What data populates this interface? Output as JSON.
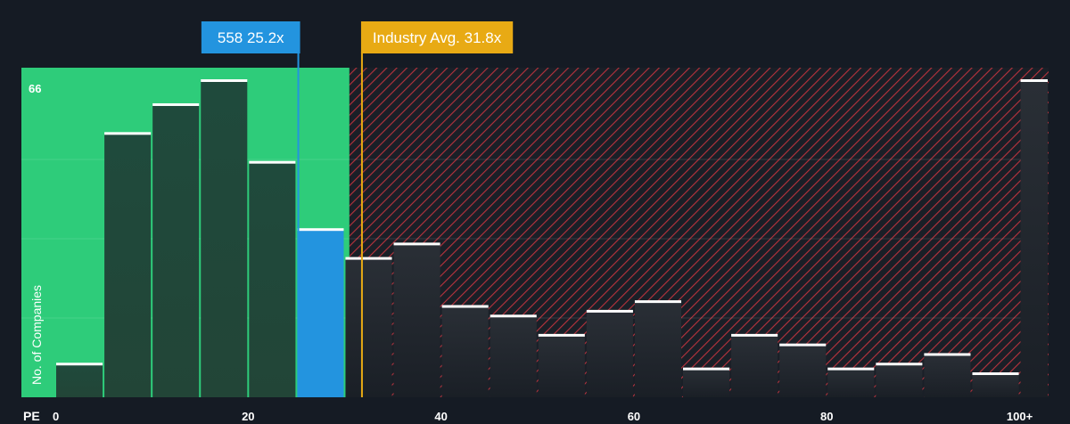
{
  "chart_data": {
    "type": "bar",
    "xlabel": "PE",
    "ylabel": "No. of Companies",
    "y_max_label": "66",
    "ylim": [
      0,
      66
    ],
    "xlim": [
      0,
      103
    ],
    "x_ticks": [
      {
        "value": 0,
        "label": "0"
      },
      {
        "value": 20,
        "label": "20"
      },
      {
        "value": 40,
        "label": "40"
      },
      {
        "value": 60,
        "label": "60"
      },
      {
        "value": 80,
        "label": "80"
      },
      {
        "value": 100,
        "label": "100+"
      }
    ],
    "bins": [
      {
        "x0": 0,
        "x1": 5,
        "value": 7
      },
      {
        "x0": 5,
        "x1": 10,
        "value": 55
      },
      {
        "x0": 10,
        "x1": 15,
        "value": 61
      },
      {
        "x0": 15,
        "x1": 20,
        "value": 66
      },
      {
        "x0": 20,
        "x1": 25,
        "value": 49
      },
      {
        "x0": 25,
        "x1": 30,
        "value": 35,
        "highlight": true
      },
      {
        "x0": 30,
        "x1": 35,
        "value": 29
      },
      {
        "x0": 35,
        "x1": 40,
        "value": 32
      },
      {
        "x0": 40,
        "x1": 45,
        "value": 19
      },
      {
        "x0": 45,
        "x1": 50,
        "value": 17
      },
      {
        "x0": 50,
        "x1": 55,
        "value": 13
      },
      {
        "x0": 55,
        "x1": 60,
        "value": 18
      },
      {
        "x0": 60,
        "x1": 65,
        "value": 20
      },
      {
        "x0": 65,
        "x1": 70,
        "value": 6
      },
      {
        "x0": 70,
        "x1": 75,
        "value": 13
      },
      {
        "x0": 75,
        "x1": 80,
        "value": 11
      },
      {
        "x0": 80,
        "x1": 85,
        "value": 6
      },
      {
        "x0": 85,
        "x1": 90,
        "value": 7
      },
      {
        "x0": 90,
        "x1": 95,
        "value": 9
      },
      {
        "x0": 95,
        "x1": 100,
        "value": 5
      },
      {
        "x0": 100,
        "x1": 103,
        "value": 66
      }
    ],
    "company": {
      "label": "558 25.2x",
      "value": 25.2
    },
    "industry": {
      "label": "Industry Avg. 31.8x",
      "value": 31.8
    },
    "fair_zone_end": 30.5,
    "colors": {
      "background": "#151b24",
      "fair_zone": "#2ecc7a",
      "expensive_hatch": "#b8333d",
      "bar": "#1f2a30",
      "bar_in_zone": "#1f4a3c",
      "highlight_bar": "#2394df",
      "bar_cap": "#ffffff",
      "company_callout": "#2394df",
      "industry_callout": "#e8aa14"
    }
  }
}
